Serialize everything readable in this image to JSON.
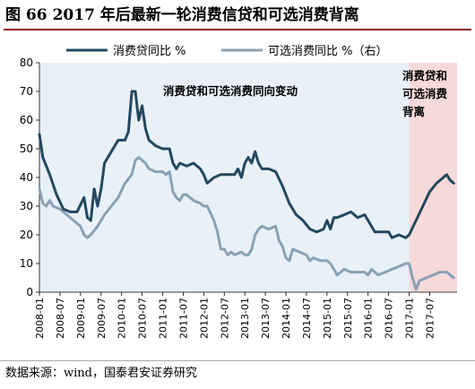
{
  "figure": {
    "label": "图 66",
    "title": "2017 年后最新一轮消费信贷和可选消费背离"
  },
  "source_note": "数据来源：wind，国泰君安证券研究",
  "colors": {
    "series_1": "#24485f",
    "series_2": "#8aa1b4",
    "plot_bg": "#e9f0f8",
    "shade": "#f6dada",
    "title_rule": "#8b1a1a"
  },
  "chart_data": {
    "type": "line",
    "legend_position": "top",
    "annotations": [
      {
        "text": "消费贷和可选消费同向变动"
      },
      {
        "lines": [
          "消费贷和",
          "可选消费",
          "背离"
        ]
      }
    ],
    "y_left": {
      "min": 0,
      "max": 80,
      "ticks": [
        0,
        10,
        20,
        30,
        40,
        50,
        60,
        70,
        80
      ]
    },
    "y_right": {
      "min": -10,
      "max": 70
    },
    "x_ticks": [
      "2008-01",
      "2008-07",
      "2009-01",
      "2009-07",
      "2010-01",
      "2010-07",
      "2011-01",
      "2011-07",
      "2012-01",
      "2012-07",
      "2013-01",
      "2013-07",
      "2014-01",
      "2014-07",
      "2015-01",
      "2015-07",
      "2016-01",
      "2016-07",
      "2017-01",
      "2017-07"
    ],
    "shaded_range": [
      "2017-01",
      "2018-03"
    ],
    "series": [
      {
        "name": "消费贷同比 %",
        "axis": "left",
        "points": [
          [
            "2008-01",
            55
          ],
          [
            "2008-02",
            47
          ],
          [
            "2008-04",
            41
          ],
          [
            "2008-06",
            34
          ],
          [
            "2008-08",
            29
          ],
          [
            "2008-10",
            28
          ],
          [
            "2008-12",
            28
          ],
          [
            "2009-02",
            33
          ],
          [
            "2009-03",
            26
          ],
          [
            "2009-04",
            25
          ],
          [
            "2009-05",
            36
          ],
          [
            "2009-06",
            30
          ],
          [
            "2009-07",
            36
          ],
          [
            "2009-08",
            45
          ],
          [
            "2009-10",
            49
          ],
          [
            "2009-12",
            53
          ],
          [
            "2010-02",
            53
          ],
          [
            "2010-03",
            56
          ],
          [
            "2010-04",
            70
          ],
          [
            "2010-05",
            70
          ],
          [
            "2010-06",
            60
          ],
          [
            "2010-07",
            65
          ],
          [
            "2010-08",
            57
          ],
          [
            "2010-09",
            53
          ],
          [
            "2010-11",
            51
          ],
          [
            "2011-01",
            50
          ],
          [
            "2011-03",
            50
          ],
          [
            "2011-04",
            45
          ],
          [
            "2011-05",
            43
          ],
          [
            "2011-06",
            45
          ],
          [
            "2011-08",
            44
          ],
          [
            "2011-10",
            45
          ],
          [
            "2011-12",
            43
          ],
          [
            "2012-01",
            41
          ],
          [
            "2012-02",
            38
          ],
          [
            "2012-04",
            40
          ],
          [
            "2012-06",
            41
          ],
          [
            "2012-08",
            41
          ],
          [
            "2012-10",
            41
          ],
          [
            "2012-11",
            43
          ],
          [
            "2012-12",
            40
          ],
          [
            "2013-01",
            45
          ],
          [
            "2013-02",
            47
          ],
          [
            "2013-03",
            45
          ],
          [
            "2013-04",
            49
          ],
          [
            "2013-05",
            45
          ],
          [
            "2013-06",
            43
          ],
          [
            "2013-08",
            43
          ],
          [
            "2013-10",
            42
          ],
          [
            "2013-12",
            37
          ],
          [
            "2014-02",
            31
          ],
          [
            "2014-04",
            27
          ],
          [
            "2014-06",
            25
          ],
          [
            "2014-08",
            22
          ],
          [
            "2014-10",
            21
          ],
          [
            "2014-12",
            22
          ],
          [
            "2015-01",
            25
          ],
          [
            "2015-02",
            22
          ],
          [
            "2015-03",
            26
          ],
          [
            "2015-04",
            26
          ],
          [
            "2015-06",
            27
          ],
          [
            "2015-08",
            28
          ],
          [
            "2015-10",
            26
          ],
          [
            "2015-12",
            27
          ],
          [
            "2016-01",
            25
          ],
          [
            "2016-03",
            21
          ],
          [
            "2016-05",
            21
          ],
          [
            "2016-07",
            21
          ],
          [
            "2016-08",
            19
          ],
          [
            "2016-10",
            20
          ],
          [
            "2016-12",
            19
          ],
          [
            "2017-01",
            20
          ],
          [
            "2017-03",
            25
          ],
          [
            "2017-05",
            30
          ],
          [
            "2017-07",
            35
          ],
          [
            "2017-09",
            38
          ],
          [
            "2017-11",
            40
          ],
          [
            "2017-12",
            41
          ],
          [
            "2018-01",
            39
          ],
          [
            "2018-02",
            38
          ]
        ]
      },
      {
        "name": "可选消费同比 %（右）",
        "axis": "right",
        "points": [
          [
            "2008-01",
            26
          ],
          [
            "2008-02",
            21
          ],
          [
            "2008-03",
            20
          ],
          [
            "2008-04",
            22
          ],
          [
            "2008-05",
            20
          ],
          [
            "2008-07",
            19
          ],
          [
            "2008-09",
            17
          ],
          [
            "2008-11",
            15
          ],
          [
            "2009-01",
            13
          ],
          [
            "2009-02",
            10
          ],
          [
            "2009-03",
            9
          ],
          [
            "2009-04",
            10
          ],
          [
            "2009-06",
            13
          ],
          [
            "2009-08",
            17
          ],
          [
            "2009-10",
            20
          ],
          [
            "2009-12",
            23
          ],
          [
            "2010-02",
            28
          ],
          [
            "2010-04",
            31
          ],
          [
            "2010-05",
            36
          ],
          [
            "2010-06",
            37
          ],
          [
            "2010-08",
            35
          ],
          [
            "2010-09",
            33
          ],
          [
            "2010-11",
            32
          ],
          [
            "2011-01",
            32
          ],
          [
            "2011-02",
            31
          ],
          [
            "2011-03",
            32
          ],
          [
            "2011-04",
            25
          ],
          [
            "2011-05",
            23
          ],
          [
            "2011-06",
            22
          ],
          [
            "2011-07",
            24
          ],
          [
            "2011-08",
            24
          ],
          [
            "2011-10",
            22
          ],
          [
            "2011-12",
            21
          ],
          [
            "2012-01",
            20
          ],
          [
            "2012-02",
            20
          ],
          [
            "2012-04",
            15
          ],
          [
            "2012-05",
            11
          ],
          [
            "2012-06",
            5
          ],
          [
            "2012-07",
            5
          ],
          [
            "2012-08",
            3
          ],
          [
            "2012-09",
            4
          ],
          [
            "2012-10",
            3
          ],
          [
            "2012-12",
            4
          ],
          [
            "2013-01",
            3
          ],
          [
            "2013-02",
            3
          ],
          [
            "2013-03",
            5
          ],
          [
            "2013-04",
            10
          ],
          [
            "2013-05",
            12
          ],
          [
            "2013-06",
            13
          ],
          [
            "2013-08",
            12
          ],
          [
            "2013-10",
            13
          ],
          [
            "2013-11",
            8
          ],
          [
            "2013-12",
            6
          ],
          [
            "2014-01",
            2
          ],
          [
            "2014-02",
            1
          ],
          [
            "2014-03",
            5
          ],
          [
            "2014-05",
            4
          ],
          [
            "2014-07",
            3
          ],
          [
            "2014-08",
            1
          ],
          [
            "2014-09",
            2
          ],
          [
            "2014-11",
            1
          ],
          [
            "2015-01",
            1
          ],
          [
            "2015-02",
            0
          ],
          [
            "2015-03",
            -2
          ],
          [
            "2015-04",
            -4
          ],
          [
            "2015-05",
            -3
          ],
          [
            "2015-06",
            -2
          ],
          [
            "2015-08",
            -3
          ],
          [
            "2015-10",
            -3
          ],
          [
            "2015-12",
            -3
          ],
          [
            "2016-01",
            -4
          ],
          [
            "2016-02",
            -2
          ],
          [
            "2016-04",
            -4
          ],
          [
            "2016-06",
            -3
          ],
          [
            "2016-08",
            -2
          ],
          [
            "2016-10",
            -1
          ],
          [
            "2016-12",
            0
          ],
          [
            "2017-01",
            0
          ],
          [
            "2017-02",
            -5
          ],
          [
            "2017-03",
            -9
          ],
          [
            "2017-04",
            -6
          ],
          [
            "2017-06",
            -5
          ],
          [
            "2017-08",
            -4
          ],
          [
            "2017-10",
            -3
          ],
          [
            "2017-12",
            -3
          ],
          [
            "2018-01",
            -4
          ],
          [
            "2018-02",
            -5
          ]
        ]
      }
    ]
  }
}
